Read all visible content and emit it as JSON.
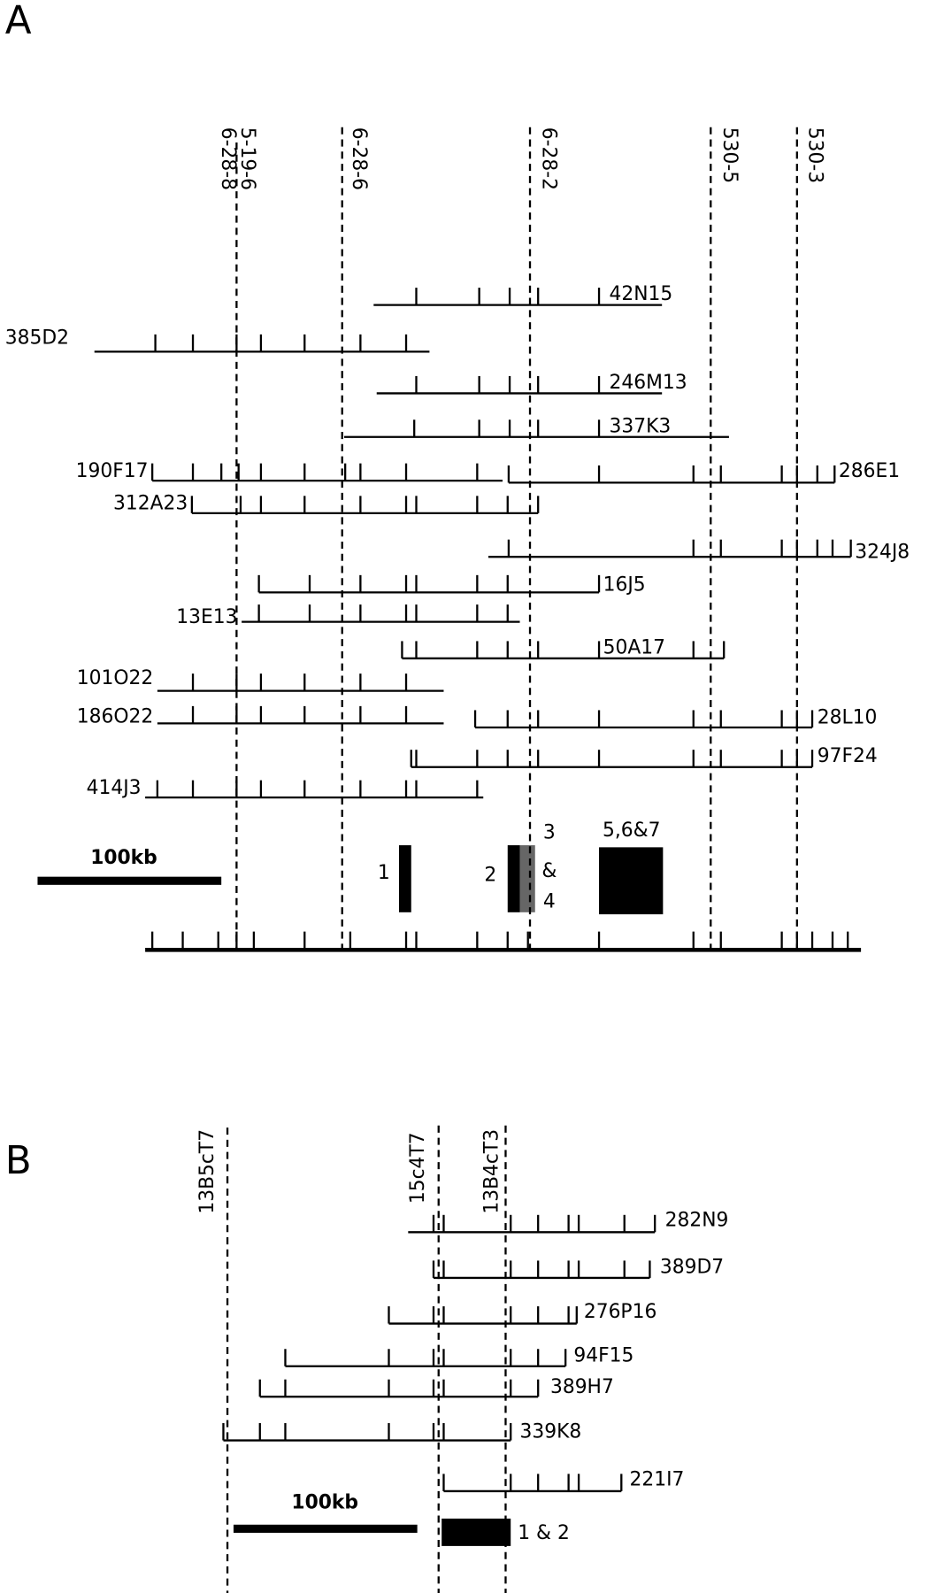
{
  "panel_a": {
    "label": "A",
    "markers": [
      "5-19-6",
      "6-28-8",
      "6-28-6",
      "6-28-2",
      "530-5",
      "530-3"
    ],
    "clones": [
      "42N15",
      "385D2",
      "246M13",
      "337K3",
      "190F17",
      "286E1",
      "312A23",
      "324J8",
      "16J5",
      "13E13",
      "50A17",
      "101O22",
      "186O22",
      "28L10",
      "97F24",
      "414J3"
    ],
    "scale": "100kb",
    "genes": [
      "1",
      "2",
      "3",
      "&",
      "4",
      "5,6&7"
    ]
  },
  "panel_b": {
    "label": "B",
    "markers": [
      "13B5cT7",
      "15c4T7",
      "13B4cT3"
    ],
    "clones": [
      "282N9",
      "389D7",
      "276P16",
      "94F15",
      "389H7",
      "339K8",
      "221I7"
    ],
    "scale": "100kb",
    "genes": [
      "1 & 2"
    ]
  }
}
